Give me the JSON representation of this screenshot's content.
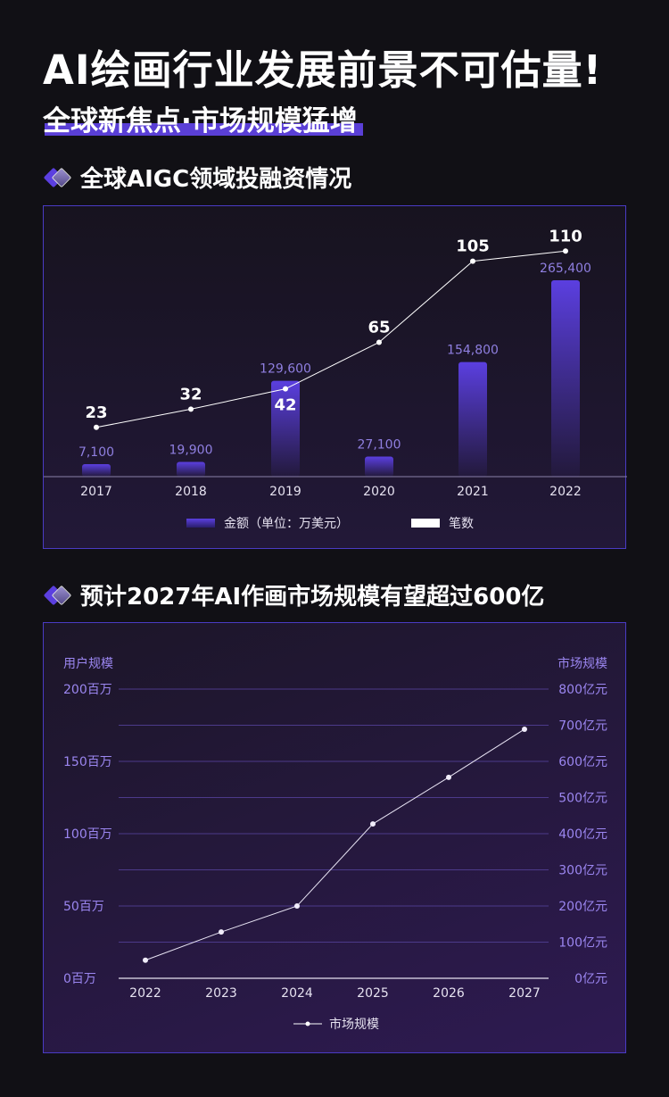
{
  "header": {
    "title": "AI绘画行业发展前景不可估量!",
    "subtitle": "全球新焦点·市场规模猛增"
  },
  "section1": {
    "title": "全球AIGC领域投融资情况"
  },
  "section2": {
    "title": "预计2027年AI作画市场规模有望超过600亿"
  },
  "colors": {
    "accent": "#5a3fd6",
    "bar": "#5b3fe0",
    "line": "#ffffff",
    "axis_label": "#9b86f0"
  },
  "chart_data": [
    {
      "type": "bar+line",
      "categories": [
        "2017",
        "2018",
        "2019",
        "2020",
        "2021",
        "2022"
      ],
      "series": [
        {
          "name": "金额（单位：万美元）",
          "type": "bar",
          "values": [
            7100,
            19900,
            129600,
            27100,
            154800,
            265400
          ],
          "labels": [
            "7,100",
            "19,900",
            "129,600",
            "27,100",
            "154,800",
            "265,400"
          ]
        },
        {
          "name": "笔数",
          "type": "line",
          "values": [
            23,
            32,
            42,
            65,
            105,
            110
          ]
        }
      ],
      "legend_position": "bottom",
      "grid": false
    },
    {
      "type": "line",
      "categories": [
        "2022",
        "2023",
        "2024",
        "2025",
        "2026",
        "2027"
      ],
      "series": [
        {
          "name": "市场规模",
          "values": [
            50,
            128,
            200,
            427,
            556,
            689
          ]
        }
      ],
      "ylabel_left": "用户规模",
      "ylabel_right": "市场规模",
      "yticks_left": [
        "0百万",
        "50百万",
        "100百万",
        "150百万",
        "200百万"
      ],
      "yticks_right": [
        "0亿元",
        "100亿元",
        "200亿元",
        "300亿元",
        "400亿元",
        "500亿元",
        "600亿元",
        "700亿元",
        "800亿元"
      ],
      "ylim_right": [
        0,
        800
      ],
      "ylim_left": [
        0,
        200
      ],
      "grid": true,
      "legend_position": "bottom"
    }
  ]
}
